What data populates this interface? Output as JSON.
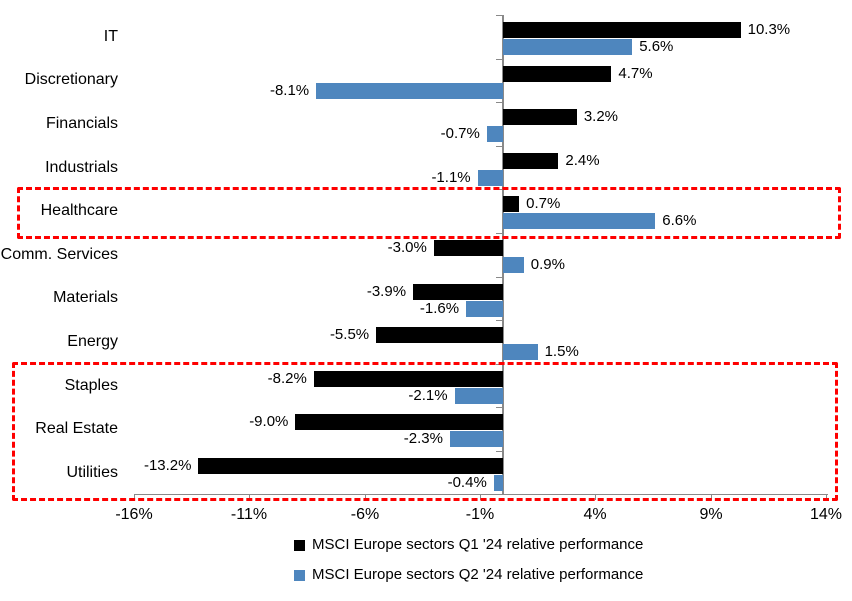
{
  "chart_data": {
    "type": "bar",
    "orientation": "horizontal",
    "title": "",
    "categories": [
      "IT",
      "Discretionary",
      "Financials",
      "Industrials",
      "Healthcare",
      "Comm. Services",
      "Materials",
      "Energy",
      "Staples",
      "Real Estate",
      "Utilities"
    ],
    "series": [
      {
        "name": "MSCI Europe sectors Q1 '24 relative performance",
        "color": "#000000",
        "values": [
          10.3,
          4.7,
          3.2,
          2.4,
          0.7,
          -3.0,
          -3.9,
          -5.5,
          -8.2,
          -9.0,
          -13.2
        ],
        "labels": [
          "10.3%",
          "4.7%",
          "3.2%",
          "2.4%",
          "0.7%",
          "-3.0%",
          "-3.9%",
          "-5.5%",
          "-8.2%",
          "-9.0%",
          "-13.2%"
        ]
      },
      {
        "name": "MSCI Europe sectors Q2 '24 relative performance",
        "color": "#4e86be",
        "values": [
          5.6,
          -8.1,
          -0.7,
          -1.1,
          6.6,
          0.9,
          -1.6,
          1.5,
          -2.1,
          -2.3,
          -0.4
        ],
        "labels": [
          "5.6%",
          "-8.1%",
          "-0.7%",
          "-1.1%",
          "6.6%",
          "0.9%",
          "-1.6%",
          "1.5%",
          "-2.1%",
          "-2.3%",
          "-0.4%"
        ]
      }
    ],
    "x_ticks": [
      {
        "value": -16,
        "label": "-16%"
      },
      {
        "value": -11,
        "label": "-11%"
      },
      {
        "value": -6,
        "label": "-6%"
      },
      {
        "value": -1,
        "label": "-1%"
      },
      {
        "value": 4,
        "label": "4%"
      },
      {
        "value": 9,
        "label": "9%"
      },
      {
        "value": 14,
        "label": "14%"
      }
    ],
    "xlim": [
      -16,
      14
    ],
    "grid": false,
    "legend_position": "bottom",
    "axis_color": "#898989",
    "highlight_color": "#fe0000",
    "highlight_boxes": [
      {
        "name": "healthcare-highlight",
        "start_row": 4,
        "end_row": 4
      },
      {
        "name": "defensives-highlight",
        "start_row": 8,
        "end_row": 10
      }
    ]
  }
}
